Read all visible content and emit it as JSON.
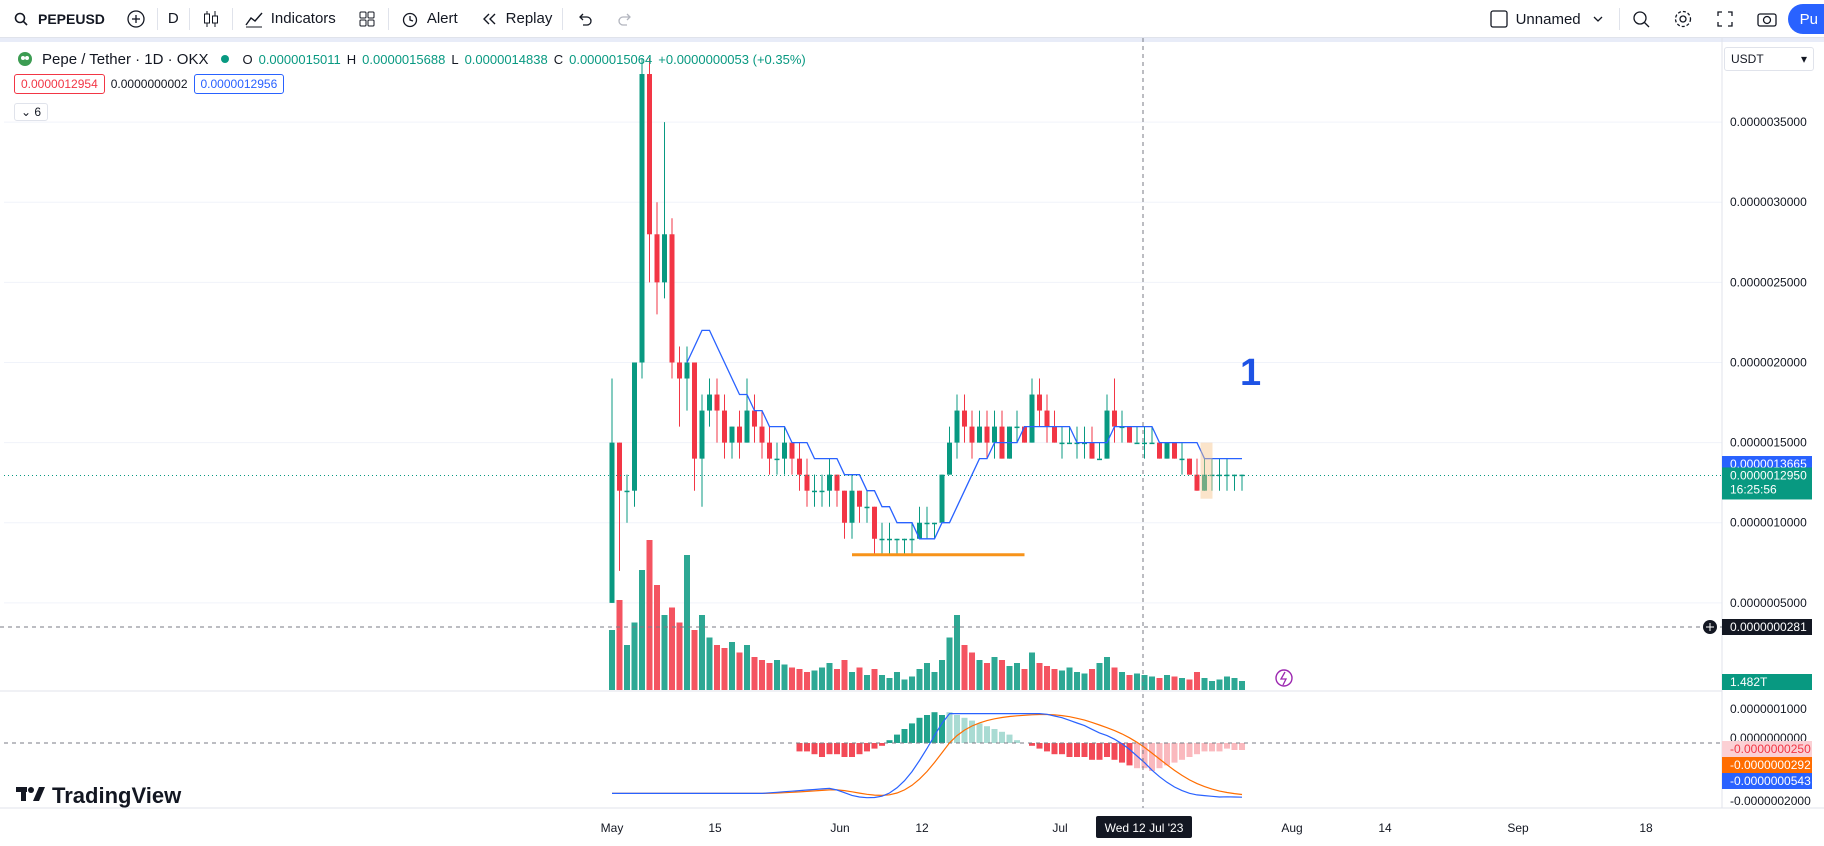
{
  "toolbar": {
    "symbol": "PEPEUSD",
    "interval": "D",
    "indicators_label": "Indicators",
    "alert_label": "Alert",
    "replay_label": "Replay",
    "layout_name": "Unnamed",
    "publish_label": "Pu"
  },
  "legend": {
    "title": "Pepe / Tether · 1D · OKX",
    "o_label": "O",
    "o_value": "0.0000015011",
    "h_label": "H",
    "h_value": "0.0000015688",
    "l_label": "L",
    "l_value": "0.0000014838",
    "c_label": "C",
    "c_value": "0.0000015064",
    "change": "+0.0000000053 (+0.35%)"
  },
  "indicator_values": {
    "bid": "0.0000012954",
    "spread": "0.0000000002",
    "ask": "0.0000012956"
  },
  "collapse_count": "6",
  "currency": "USDT",
  "annotation": "1",
  "logo_text": "TradingView",
  "colors": {
    "up": "#089981",
    "down": "#f23645",
    "ma": "#2962ff",
    "signal": "#ff6d00",
    "support": "#f7931a"
  },
  "chart_data": {
    "type": "candlestick",
    "price_ticks": [
      "0.0000035000",
      "0.0000030000",
      "0.0000025000",
      "0.0000020000",
      "0.0000015000",
      "0.0000010000",
      "0.0000005000"
    ],
    "price_tick_values": [
      3.5e-06,
      3e-06,
      2.5e-06,
      2e-06,
      1.5e-06,
      1e-06,
      5e-07
    ],
    "ylim": [
      0.0,
      3.9e-06
    ],
    "x_labels": [
      "May",
      "15",
      "Jun",
      "12",
      "Jul",
      "Wed 12 Jul '23",
      "Aug",
      "14",
      "Sep",
      "18"
    ],
    "price_labels": {
      "ma": "0.0000013665",
      "last": "0.0000012950",
      "countdown": "16:25:56",
      "crosshair": "0.0000000281",
      "volume": "1.482T"
    },
    "macd_labels": {
      "top": "0.0000001000",
      "zero": "0.0000000000",
      "hist": "-0.0000000250",
      "signal": "-0.0000000292",
      "macd": "-0.0000000543",
      "bottom": "-0.0000002000"
    },
    "candles": [
      [
        5e-07,
        1.5e-06,
        5e-07,
        1.9e-06
      ],
      [
        1.5e-06,
        1.2e-06,
        7e-07,
        1.5e-06
      ],
      [
        1.2e-06,
        1.2e-06,
        1e-06,
        1.3e-06
      ],
      [
        1.2e-06,
        2e-06,
        1.1e-06,
        2e-06
      ],
      [
        2e-06,
        3.8e-06,
        1.9e-06,
        3.9e-06
      ],
      [
        3.8e-06,
        2.8e-06,
        2.5e-06,
        3.9e-06
      ],
      [
        2.8e-06,
        2.5e-06,
        2.3e-06,
        3e-06
      ],
      [
        2.5e-06,
        2.8e-06,
        2.4e-06,
        3.5e-06
      ],
      [
        2.8e-06,
        2e-06,
        1.9e-06,
        2.9e-06
      ],
      [
        2e-06,
        1.9e-06,
        1.6e-06,
        2.1e-06
      ],
      [
        1.9e-06,
        2e-06,
        1.7e-06,
        2.1e-06
      ],
      [
        2e-06,
        1.4e-06,
        1.2e-06,
        2e-06
      ],
      [
        1.4e-06,
        1.7e-06,
        1.1e-06,
        1.8e-06
      ],
      [
        1.7e-06,
        1.8e-06,
        1.6e-06,
        1.9e-06
      ],
      [
        1.8e-06,
        1.7e-06,
        1.5e-06,
        1.9e-06
      ],
      [
        1.7e-06,
        1.5e-06,
        1.4e-06,
        1.8e-06
      ],
      [
        1.5e-06,
        1.6e-06,
        1.4e-06,
        1.6e-06
      ],
      [
        1.6e-06,
        1.5e-06,
        1.4e-06,
        1.7e-06
      ],
      [
        1.5e-06,
        1.7e-06,
        1.5e-06,
        1.9e-06
      ],
      [
        1.7e-06,
        1.6e-06,
        1.5e-06,
        1.8e-06
      ],
      [
        1.6e-06,
        1.5e-06,
        1.4e-06,
        1.7e-06
      ],
      [
        1.5e-06,
        1.4e-06,
        1.3e-06,
        1.6e-06
      ],
      [
        1.4e-06,
        1.4e-06,
        1.3e-06,
        1.5e-06
      ],
      [
        1.4e-06,
        1.5e-06,
        1.3e-06,
        1.6e-06
      ],
      [
        1.5e-06,
        1.4e-06,
        1.3e-06,
        1.5e-06
      ],
      [
        1.4e-06,
        1.3e-06,
        1.2e-06,
        1.5e-06
      ],
      [
        1.3e-06,
        1.2e-06,
        1.1e-06,
        1.4e-06
      ],
      [
        1.2e-06,
        1.2e-06,
        1.1e-06,
        1.3e-06
      ],
      [
        1.2e-06,
        1.2e-06,
        1.1e-06,
        1.3e-06
      ],
      [
        1.2e-06,
        1.3e-06,
        1.1e-06,
        1.4e-06
      ],
      [
        1.3e-06,
        1.2e-06,
        1.1e-06,
        1.3e-06
      ],
      [
        1.2e-06,
        1e-06,
        9e-07,
        1.2e-06
      ],
      [
        1e-06,
        1.2e-06,
        9e-07,
        1.3e-06
      ],
      [
        1.2e-06,
        1.1e-06,
        1e-06,
        1.2e-06
      ],
      [
        1.1e-06,
        1.1e-06,
        1e-06,
        1.2e-06
      ],
      [
        1.1e-06,
        9e-07,
        8e-07,
        1.1e-06
      ],
      [
        9e-07,
        9e-07,
        8e-07,
        1e-06
      ],
      [
        9e-07,
        9e-07,
        8e-07,
        1e-06
      ],
      [
        9e-07,
        9e-07,
        8e-07,
        9e-07
      ],
      [
        9e-07,
        9e-07,
        8e-07,
        9e-07
      ],
      [
        9e-07,
        9e-07,
        8e-07,
        1e-06
      ],
      [
        9e-07,
        1e-06,
        9e-07,
        1.1e-06
      ],
      [
        1e-06,
        1e-06,
        9e-07,
        1.1e-06
      ],
      [
        1e-06,
        1e-06,
        9e-07,
        1e-06
      ],
      [
        1e-06,
        1.3e-06,
        1e-06,
        1.3e-06
      ],
      [
        1.3e-06,
        1.5e-06,
        1.3e-06,
        1.6e-06
      ],
      [
        1.5e-06,
        1.7e-06,
        1.4e-06,
        1.8e-06
      ],
      [
        1.7e-06,
        1.6e-06,
        1.5e-06,
        1.8e-06
      ],
      [
        1.6e-06,
        1.5e-06,
        1.4e-06,
        1.7e-06
      ],
      [
        1.5e-06,
        1.6e-06,
        1.5e-06,
        1.7e-06
      ],
      [
        1.6e-06,
        1.5e-06,
        1.4e-06,
        1.7e-06
      ],
      [
        1.5e-06,
        1.6e-06,
        1.4e-06,
        1.7e-06
      ],
      [
        1.6e-06,
        1.4e-06,
        1.4e-06,
        1.7e-06
      ],
      [
        1.4e-06,
        1.6e-06,
        1.4e-06,
        1.6e-06
      ],
      [
        1.6e-06,
        1.6e-06,
        1.5e-06,
        1.7e-06
      ],
      [
        1.6e-06,
        1.5e-06,
        1.5e-06,
        1.6e-06
      ],
      [
        1.5e-06,
        1.8e-06,
        1.5e-06,
        1.9e-06
      ],
      [
        1.8e-06,
        1.7e-06,
        1.6e-06,
        1.9e-06
      ],
      [
        1.7e-06,
        1.6e-06,
        1.5e-06,
        1.8e-06
      ],
      [
        1.6e-06,
        1.5e-06,
        1.5e-06,
        1.7e-06
      ],
      [
        1.5e-06,
        1.5e-06,
        1.4e-06,
        1.6e-06
      ],
      [
        1.5e-06,
        1.5e-06,
        1.5e-06,
        1.6e-06
      ],
      [
        1.5e-06,
        1.5e-06,
        1.4e-06,
        1.6e-06
      ],
      [
        1.5e-06,
        1.5e-06,
        1.4e-06,
        1.6e-06
      ],
      [
        1.5e-06,
        1.4e-06,
        1.4e-06,
        1.6e-06
      ],
      [
        1.4e-06,
        1.4e-06,
        1.4e-06,
        1.5e-06
      ],
      [
        1.4e-06,
        1.7e-06,
        1.4e-06,
        1.8e-06
      ],
      [
        1.7e-06,
        1.6e-06,
        1.5e-06,
        1.9e-06
      ],
      [
        1.6e-06,
        1.6e-06,
        1.5e-06,
        1.7e-06
      ],
      [
        1.6e-06,
        1.5e-06,
        1.5e-06,
        1.6e-06
      ],
      [
        1.5e-06,
        1.5e-06,
        1.5e-06,
        1.6e-06
      ],
      [
        1.5e-06,
        1.5e-06,
        1.4e-06,
        1.6e-06
      ],
      [
        1.5e-06,
        1.5e-06,
        1.5e-06,
        1.6e-06
      ],
      [
        1.5e-06,
        1.4e-06,
        1.4e-06,
        1.5e-06
      ],
      [
        1.4e-06,
        1.5e-06,
        1.4e-06,
        1.5e-06
      ],
      [
        1.5e-06,
        1.4e-06,
        1.4e-06,
        1.5e-06
      ],
      [
        1.4e-06,
        1.4e-06,
        1.3e-06,
        1.5e-06
      ],
      [
        1.4e-06,
        1.3e-06,
        1.3e-06,
        1.4e-06
      ],
      [
        1.3e-06,
        1.2e-06,
        1.2e-06,
        1.4e-06
      ],
      [
        1.2e-06,
        1.3e-06,
        1.2e-06,
        1.4e-06
      ],
      [
        1.3e-06,
        1.3e-06,
        1.2e-06,
        1.4e-06
      ],
      [
        1.3e-06,
        1.3e-06,
        1.2e-06,
        1.4e-06
      ],
      [
        1.3e-06,
        1.3e-06,
        1.2e-06,
        1.4e-06
      ],
      [
        1.3e-06,
        1.3e-06,
        1.2e-06,
        1.3e-06
      ],
      [
        1.3e-06,
        1.3e-06,
        1.2e-06,
        1.3e-06
      ]
    ],
    "ma": [
      null,
      null,
      null,
      null,
      null,
      null,
      null,
      null,
      null,
      null,
      2e-06,
      2.1e-06,
      2.2e-06,
      2.2e-06,
      2.1e-06,
      2e-06,
      1.9e-06,
      1.8e-06,
      1.8e-06,
      1.7e-06,
      1.7e-06,
      1.6e-06,
      1.6e-06,
      1.6e-06,
      1.5e-06,
      1.5e-06,
      1.5e-06,
      1.4e-06,
      1.4e-06,
      1.4e-06,
      1.4e-06,
      1.3e-06,
      1.3e-06,
      1.3e-06,
      1.2e-06,
      1.2e-06,
      1.1e-06,
      1.1e-06,
      1e-06,
      1e-06,
      1e-06,
      9e-07,
      9e-07,
      9e-07,
      1e-06,
      1e-06,
      1.1e-06,
      1.2e-06,
      1.3e-06,
      1.4e-06,
      1.4e-06,
      1.5e-06,
      1.5e-06,
      1.5e-06,
      1.5e-06,
      1.6e-06,
      1.6e-06,
      1.6e-06,
      1.6e-06,
      1.6e-06,
      1.6e-06,
      1.6e-06,
      1.5e-06,
      1.5e-06,
      1.5e-06,
      1.5e-06,
      1.5e-06,
      1.6e-06,
      1.6e-06,
      1.6e-06,
      1.6e-06,
      1.6e-06,
      1.6e-06,
      1.5e-06,
      1.5e-06,
      1.5e-06,
      1.5e-06,
      1.5e-06,
      1.5e-06,
      1.4e-06,
      1.4e-06,
      1.4e-06,
      1.4e-06,
      1.4e-06,
      1.4e-06
    ],
    "volume": [
      40,
      60,
      30,
      45,
      80,
      100,
      70,
      50,
      55,
      45,
      90,
      40,
      50,
      35,
      30,
      28,
      32,
      25,
      30,
      22,
      20,
      18,
      20,
      17,
      15,
      14,
      12,
      13,
      15,
      18,
      14,
      20,
      12,
      15,
      10,
      14,
      10,
      8,
      12,
      7,
      9,
      14,
      18,
      12,
      20,
      35,
      50,
      30,
      25,
      20,
      18,
      22,
      20,
      16,
      18,
      14,
      25,
      18,
      16,
      14,
      13,
      15,
      12,
      11,
      14,
      18,
      22,
      15,
      12,
      10,
      11,
      10,
      9,
      8,
      10,
      9,
      8,
      7,
      12,
      8,
      6,
      7,
      9,
      8,
      6
    ],
    "support_line": 8e-07,
    "macd": {
      "hist": [
        0,
        0,
        0,
        0,
        0,
        0,
        0,
        0,
        0,
        0,
        0,
        0,
        0,
        0,
        0,
        0,
        0,
        0,
        0,
        0,
        0,
        0,
        0,
        0,
        0,
        -0.3,
        -0.3,
        -0.4,
        -0.5,
        -0.4,
        -0.4,
        -0.5,
        -0.5,
        -0.4,
        -0.3,
        -0.2,
        -0.1,
        0.1,
        0.3,
        0.5,
        0.7,
        0.9,
        1.0,
        1.1,
        1.0,
        1.1,
        1.0,
        0.9,
        0.8,
        0.7,
        0.6,
        0.5,
        0.4,
        0.3,
        0.1,
        0.0,
        -0.1,
        -0.2,
        -0.3,
        -0.4,
        -0.4,
        -0.5,
        -0.5,
        -0.5,
        -0.6,
        -0.6,
        -0.5,
        -0.6,
        -0.7,
        -0.8,
        -0.9,
        -0.9,
        -1.0,
        -0.9,
        -0.8,
        -0.7,
        -0.6,
        -0.5,
        -0.4,
        -0.3,
        -0.3,
        -0.3,
        -0.2,
        -0.25,
        -0.25
      ]
    }
  }
}
